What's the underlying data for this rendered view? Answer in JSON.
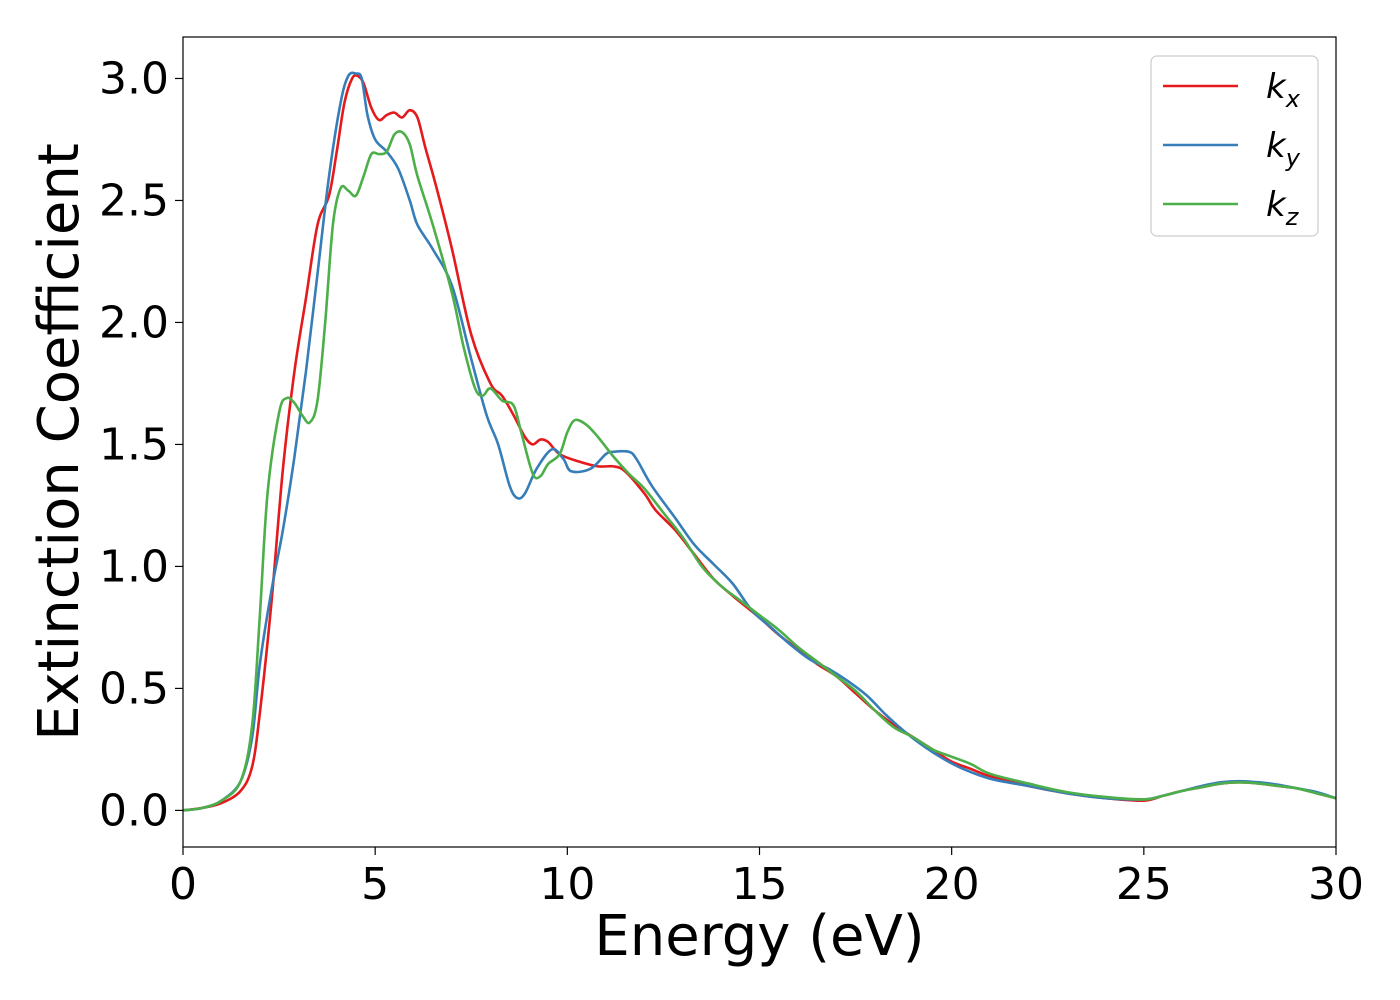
{
  "chart_data": {
    "type": "line",
    "title": "",
    "xlabel": "Energy (eV)",
    "ylabel": "Extinction Coefficient",
    "xlim": [
      0,
      30
    ],
    "ylim": [
      -0.15,
      3.17
    ],
    "xticks": [
      0,
      5,
      10,
      15,
      20,
      25,
      30
    ],
    "xtick_labels": [
      "0",
      "5",
      "10",
      "15",
      "20",
      "25",
      "30"
    ],
    "yticks": [
      0.0,
      0.5,
      1.0,
      1.5,
      2.0,
      2.5,
      3.0
    ],
    "ytick_labels": [
      "0.0",
      "0.5",
      "1.0",
      "1.5",
      "2.0",
      "2.5",
      "3.0"
    ],
    "grid": false,
    "legend_position": "top-right",
    "series": [
      {
        "name": "k_x",
        "legend_base": "k",
        "legend_sub": "x",
        "color": "#e41a1c",
        "points": [
          [
            0,
            0.0
          ],
          [
            0.5,
            0.01
          ],
          [
            1.0,
            0.03
          ],
          [
            1.5,
            0.08
          ],
          [
            1.8,
            0.18
          ],
          [
            2.0,
            0.4
          ],
          [
            2.3,
            0.85
          ],
          [
            2.6,
            1.4
          ],
          [
            2.9,
            1.8
          ],
          [
            3.2,
            2.1
          ],
          [
            3.5,
            2.4
          ],
          [
            3.8,
            2.52
          ],
          [
            4.0,
            2.7
          ],
          [
            4.2,
            2.9
          ],
          [
            4.4,
            3.0
          ],
          [
            4.55,
            3.01
          ],
          [
            4.7,
            2.98
          ],
          [
            4.9,
            2.88
          ],
          [
            5.1,
            2.83
          ],
          [
            5.3,
            2.85
          ],
          [
            5.5,
            2.86
          ],
          [
            5.7,
            2.84
          ],
          [
            5.9,
            2.87
          ],
          [
            6.1,
            2.84
          ],
          [
            6.3,
            2.72
          ],
          [
            6.6,
            2.55
          ],
          [
            7.0,
            2.3
          ],
          [
            7.5,
            1.95
          ],
          [
            8.0,
            1.75
          ],
          [
            8.3,
            1.7
          ],
          [
            8.6,
            1.62
          ],
          [
            8.9,
            1.53
          ],
          [
            9.1,
            1.5
          ],
          [
            9.3,
            1.52
          ],
          [
            9.5,
            1.51
          ],
          [
            9.8,
            1.46
          ],
          [
            10.3,
            1.43
          ],
          [
            10.8,
            1.41
          ],
          [
            11.2,
            1.41
          ],
          [
            11.5,
            1.39
          ],
          [
            12.0,
            1.3
          ],
          [
            12.3,
            1.23
          ],
          [
            12.8,
            1.15
          ],
          [
            13.3,
            1.05
          ],
          [
            13.8,
            0.95
          ],
          [
            14.3,
            0.88
          ],
          [
            15.0,
            0.79
          ],
          [
            15.5,
            0.72
          ],
          [
            16.0,
            0.66
          ],
          [
            16.5,
            0.6
          ],
          [
            17.0,
            0.55
          ],
          [
            17.5,
            0.48
          ],
          [
            18.0,
            0.41
          ],
          [
            18.5,
            0.35
          ],
          [
            19.0,
            0.3
          ],
          [
            19.5,
            0.25
          ],
          [
            20.0,
            0.2
          ],
          [
            20.5,
            0.17
          ],
          [
            21.0,
            0.14
          ],
          [
            22.0,
            0.1
          ],
          [
            23.0,
            0.07
          ],
          [
            24.0,
            0.05
          ],
          [
            25.0,
            0.04
          ],
          [
            25.5,
            0.06
          ],
          [
            26.0,
            0.08
          ],
          [
            26.5,
            0.095
          ],
          [
            27.0,
            0.11
          ],
          [
            27.5,
            0.115
          ],
          [
            28.0,
            0.11
          ],
          [
            28.5,
            0.1
          ],
          [
            29.0,
            0.09
          ],
          [
            29.5,
            0.07
          ],
          [
            30.0,
            0.05
          ]
        ]
      },
      {
        "name": "k_y",
        "legend_base": "k",
        "legend_sub": "y",
        "color": "#377eb8",
        "points": [
          [
            0,
            0.0
          ],
          [
            0.5,
            0.01
          ],
          [
            1.0,
            0.04
          ],
          [
            1.5,
            0.12
          ],
          [
            1.8,
            0.3
          ],
          [
            2.0,
            0.6
          ],
          [
            2.3,
            0.9
          ],
          [
            2.6,
            1.15
          ],
          [
            2.9,
            1.45
          ],
          [
            3.2,
            1.8
          ],
          [
            3.5,
            2.2
          ],
          [
            3.8,
            2.6
          ],
          [
            4.1,
            2.9
          ],
          [
            4.3,
            3.01
          ],
          [
            4.5,
            3.02
          ],
          [
            4.65,
            3.0
          ],
          [
            4.8,
            2.85
          ],
          [
            5.0,
            2.75
          ],
          [
            5.3,
            2.7
          ],
          [
            5.6,
            2.63
          ],
          [
            5.9,
            2.5
          ],
          [
            6.1,
            2.4
          ],
          [
            6.5,
            2.3
          ],
          [
            7.0,
            2.15
          ],
          [
            7.5,
            1.85
          ],
          [
            7.9,
            1.62
          ],
          [
            8.2,
            1.5
          ],
          [
            8.5,
            1.33
          ],
          [
            8.7,
            1.28
          ],
          [
            8.9,
            1.3
          ],
          [
            9.2,
            1.4
          ],
          [
            9.6,
            1.48
          ],
          [
            9.9,
            1.44
          ],
          [
            10.1,
            1.39
          ],
          [
            10.6,
            1.4
          ],
          [
            11.0,
            1.46
          ],
          [
            11.2,
            1.47
          ],
          [
            11.6,
            1.47
          ],
          [
            11.8,
            1.44
          ],
          [
            12.2,
            1.33
          ],
          [
            12.8,
            1.2
          ],
          [
            13.3,
            1.09
          ],
          [
            13.8,
            1.01
          ],
          [
            14.3,
            0.93
          ],
          [
            14.8,
            0.82
          ],
          [
            15.3,
            0.75
          ],
          [
            15.8,
            0.68
          ],
          [
            16.3,
            0.62
          ],
          [
            16.8,
            0.58
          ],
          [
            17.3,
            0.53
          ],
          [
            17.8,
            0.47
          ],
          [
            18.3,
            0.39
          ],
          [
            18.8,
            0.32
          ],
          [
            19.3,
            0.26
          ],
          [
            19.8,
            0.21
          ],
          [
            20.3,
            0.17
          ],
          [
            21.0,
            0.13
          ],
          [
            22.0,
            0.1
          ],
          [
            23.0,
            0.07
          ],
          [
            24.0,
            0.05
          ],
          [
            25.0,
            0.045
          ],
          [
            25.5,
            0.06
          ],
          [
            26.0,
            0.08
          ],
          [
            26.5,
            0.1
          ],
          [
            27.0,
            0.115
          ],
          [
            27.5,
            0.12
          ],
          [
            28.0,
            0.115
          ],
          [
            28.5,
            0.105
          ],
          [
            29.0,
            0.09
          ],
          [
            29.5,
            0.075
          ],
          [
            30.0,
            0.05
          ]
        ]
      },
      {
        "name": "k_z",
        "legend_base": "k",
        "legend_sub": "z",
        "color": "#4daf4a",
        "points": [
          [
            0,
            0.0
          ],
          [
            0.5,
            0.01
          ],
          [
            1.0,
            0.04
          ],
          [
            1.5,
            0.12
          ],
          [
            1.8,
            0.35
          ],
          [
            2.0,
            0.8
          ],
          [
            2.2,
            1.3
          ],
          [
            2.5,
            1.63
          ],
          [
            2.7,
            1.69
          ],
          [
            2.9,
            1.67
          ],
          [
            3.1,
            1.62
          ],
          [
            3.3,
            1.59
          ],
          [
            3.5,
            1.68
          ],
          [
            3.7,
            2.0
          ],
          [
            3.9,
            2.4
          ],
          [
            4.1,
            2.55
          ],
          [
            4.3,
            2.54
          ],
          [
            4.5,
            2.52
          ],
          [
            4.7,
            2.6
          ],
          [
            4.9,
            2.69
          ],
          [
            5.1,
            2.69
          ],
          [
            5.3,
            2.7
          ],
          [
            5.5,
            2.77
          ],
          [
            5.7,
            2.78
          ],
          [
            5.9,
            2.73
          ],
          [
            6.1,
            2.6
          ],
          [
            6.5,
            2.4
          ],
          [
            7.0,
            2.12
          ],
          [
            7.3,
            1.9
          ],
          [
            7.6,
            1.73
          ],
          [
            7.8,
            1.7
          ],
          [
            8.0,
            1.73
          ],
          [
            8.3,
            1.68
          ],
          [
            8.6,
            1.66
          ],
          [
            8.8,
            1.55
          ],
          [
            9.1,
            1.38
          ],
          [
            9.3,
            1.37
          ],
          [
            9.5,
            1.42
          ],
          [
            9.8,
            1.46
          ],
          [
            10.0,
            1.55
          ],
          [
            10.2,
            1.6
          ],
          [
            10.5,
            1.58
          ],
          [
            10.8,
            1.53
          ],
          [
            11.2,
            1.45
          ],
          [
            11.6,
            1.38
          ],
          [
            12.0,
            1.32
          ],
          [
            12.5,
            1.22
          ],
          [
            13.0,
            1.12
          ],
          [
            13.5,
            1.0
          ],
          [
            14.0,
            0.92
          ],
          [
            14.5,
            0.86
          ],
          [
            15.0,
            0.8
          ],
          [
            15.5,
            0.74
          ],
          [
            16.0,
            0.67
          ],
          [
            16.5,
            0.61
          ],
          [
            17.0,
            0.55
          ],
          [
            17.5,
            0.49
          ],
          [
            18.0,
            0.41
          ],
          [
            18.5,
            0.34
          ],
          [
            19.0,
            0.3
          ],
          [
            19.5,
            0.25
          ],
          [
            20.0,
            0.22
          ],
          [
            20.5,
            0.19
          ],
          [
            21.0,
            0.15
          ],
          [
            22.0,
            0.11
          ],
          [
            23.0,
            0.075
          ],
          [
            24.0,
            0.055
          ],
          [
            25.0,
            0.045
          ],
          [
            25.5,
            0.06
          ],
          [
            26.0,
            0.08
          ],
          [
            26.5,
            0.095
          ],
          [
            27.0,
            0.11
          ],
          [
            27.5,
            0.115
          ],
          [
            28.0,
            0.11
          ],
          [
            28.5,
            0.1
          ],
          [
            29.0,
            0.09
          ],
          [
            29.5,
            0.07
          ],
          [
            30.0,
            0.05
          ]
        ]
      }
    ]
  }
}
